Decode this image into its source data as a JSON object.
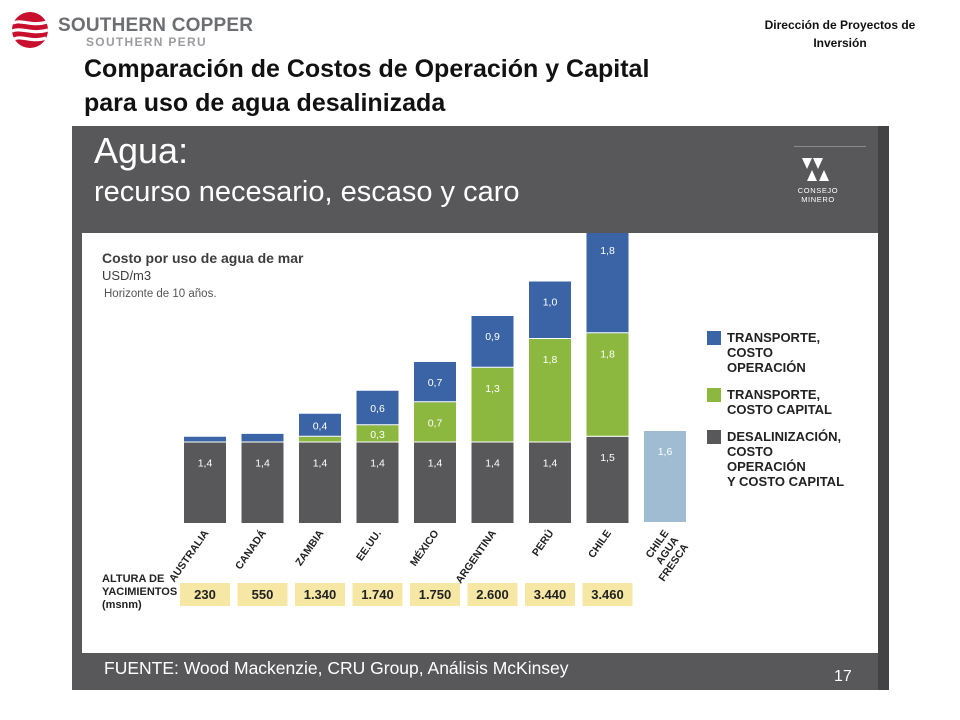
{
  "header": {
    "logo_name": "SOUTHERN COPPER",
    "logo_sub": "SOUTHERN PERU",
    "department": "Dirección de Proyectos de Inversión",
    "title_line1": "Comparación de Costos de Operación y Capital",
    "title_line2": "para uso de agua desalinizada"
  },
  "slide": {
    "heading_line1": "Agua:",
    "heading_line2": "recurso necesario, escaso y caro",
    "partner_logo_text": "CONSEJO MINERO",
    "source": "FUENTE: Wood Mackenzie, CRU Group, Análisis McKinsey",
    "page_number": "17"
  },
  "colors": {
    "transport_op": "#3a64a6",
    "transport_cap": "#8cb840",
    "desal": "#58585a",
    "fresh": "#9fbcd3",
    "altitude_box": "#f6e7a4"
  },
  "chart_data": {
    "type": "bar",
    "stacked": true,
    "title": "Costo por uso de agua de mar",
    "unit": "USD/m3",
    "note": "Horizonte de 10 años.",
    "categories": [
      "AUSTRALIA",
      "CANADÁ",
      "ZAMBIA",
      "EE.UU.",
      "MÉXICO",
      "ARGENTINA",
      "PERÚ",
      "CHILE",
      "CHILE AGUA FRESCA"
    ],
    "category_lines": [
      [
        "AUSTRALIA"
      ],
      [
        "CANADÁ"
      ],
      [
        "ZAMBIA"
      ],
      [
        "EE.UU."
      ],
      [
        "MÉXICO"
      ],
      [
        "ARGENTINA"
      ],
      [
        "PERÚ"
      ],
      [
        "CHILE"
      ],
      [
        "CHILE",
        "AGUA",
        "FRESCA"
      ]
    ],
    "series": [
      {
        "name": "DESALINIZACIÓN, COSTO OPERACIÓN Y COSTO CAPITAL",
        "legend_lines": [
          "DESALINIZACIÓN,",
          "COSTO",
          "OPERACIÓN",
          "Y COSTO CAPITAL"
        ],
        "color": "#58585a",
        "values": [
          1.4,
          1.4,
          1.4,
          1.4,
          1.4,
          1.4,
          1.4,
          1.5,
          null
        ],
        "labels": [
          "1,4",
          "1,4",
          "1,4",
          "1,4",
          "1,4",
          "1,4",
          "1,4",
          "1,5",
          ""
        ]
      },
      {
        "name": "TRANSPORTE, COSTO CAPITAL",
        "legend_lines": [
          "TRANSPORTE,",
          "COSTO CAPITAL"
        ],
        "color": "#8cb840",
        "values": [
          0,
          0,
          0.1,
          0.3,
          0.7,
          1.3,
          1.8,
          1.8,
          null
        ],
        "labels": [
          "",
          "",
          "",
          "0,3",
          "0,7",
          "1,3",
          "1,8",
          "1,8",
          ""
        ]
      },
      {
        "name": "TRANSPORTE, COSTO OPERACIÓN",
        "legend_lines": [
          "TRANSPORTE,",
          "COSTO",
          "OPERACIÓN"
        ],
        "color": "#3a64a6",
        "values": [
          0.1,
          0.15,
          0.4,
          0.6,
          0.7,
          0.9,
          1.0,
          1.8,
          null
        ],
        "labels": [
          "",
          "",
          "0,4",
          "0,6",
          "0,7",
          "0,9",
          "1,0",
          "1,8",
          ""
        ]
      },
      {
        "name": "CHILE AGUA FRESCA",
        "color": "#9fbcd3",
        "values": [
          null,
          null,
          null,
          null,
          null,
          null,
          null,
          null,
          1.6
        ],
        "labels": [
          "",
          "",
          "",
          "",
          "",
          "",
          "",
          "",
          "1,6"
        ]
      }
    ],
    "legend_order": [
      2,
      1,
      0
    ],
    "altitude": {
      "label_lines": [
        "ALTURA DE",
        "YACIMIENTOS",
        "(msnm)"
      ],
      "values": [
        "230",
        "550",
        "1.340",
        "1.740",
        "1.750",
        "2.600",
        "3.440",
        "3.460"
      ]
    }
  }
}
